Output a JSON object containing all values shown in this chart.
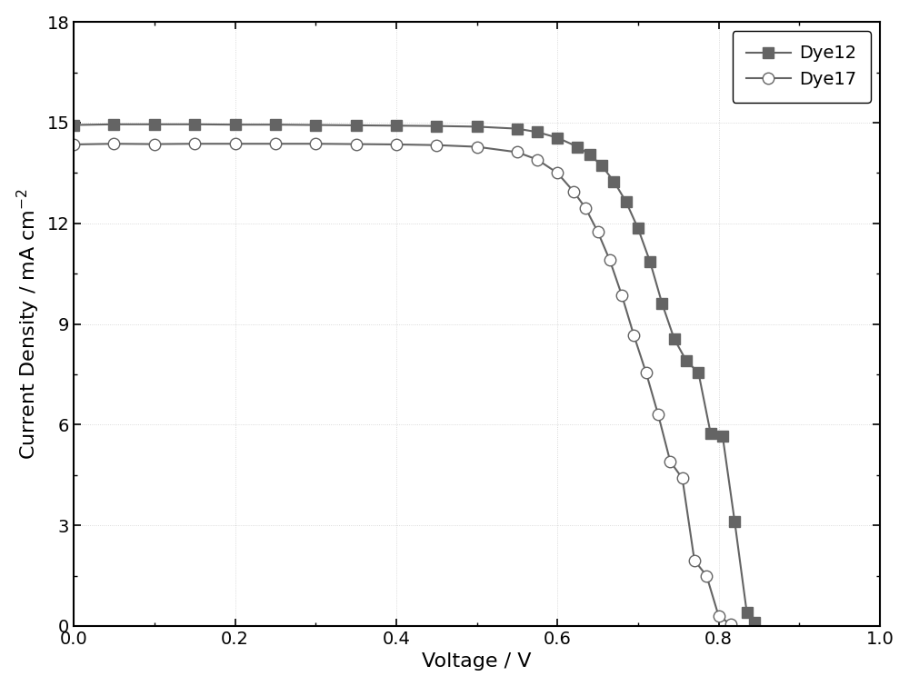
{
  "title": "",
  "xlabel": "Voltage / V",
  "ylabel": "Current Density / mA cm$^{-2}$",
  "xlim": [
    0.0,
    1.0
  ],
  "ylim": [
    0.0,
    18.0
  ],
  "yticks": [
    0,
    3,
    6,
    9,
    12,
    15,
    18
  ],
  "xticks": [
    0.0,
    0.2,
    0.4,
    0.6,
    0.8,
    1.0
  ],
  "background_color": "#ffffff",
  "line_color": "#646464",
  "dye12_x": [
    0.0,
    0.05,
    0.1,
    0.15,
    0.2,
    0.25,
    0.3,
    0.35,
    0.4,
    0.45,
    0.5,
    0.55,
    0.575,
    0.6,
    0.625,
    0.64,
    0.655,
    0.67,
    0.685,
    0.7,
    0.715,
    0.73,
    0.745,
    0.76,
    0.775,
    0.79,
    0.805,
    0.82,
    0.835,
    0.845
  ],
  "dye12_y": [
    14.93,
    14.95,
    14.95,
    14.95,
    14.94,
    14.94,
    14.93,
    14.92,
    14.91,
    14.9,
    14.88,
    14.82,
    14.72,
    14.55,
    14.28,
    14.05,
    13.72,
    13.25,
    12.65,
    11.85,
    10.85,
    9.6,
    8.55,
    7.9,
    7.55,
    5.75,
    5.65,
    3.1,
    0.4,
    0.1
  ],
  "dye17_x": [
    0.0,
    0.05,
    0.1,
    0.15,
    0.2,
    0.25,
    0.3,
    0.35,
    0.4,
    0.45,
    0.5,
    0.55,
    0.575,
    0.6,
    0.62,
    0.635,
    0.65,
    0.665,
    0.68,
    0.695,
    0.71,
    0.725,
    0.74,
    0.755,
    0.77,
    0.785,
    0.8,
    0.815
  ],
  "dye17_y": [
    14.35,
    14.37,
    14.36,
    14.37,
    14.37,
    14.37,
    14.37,
    14.36,
    14.35,
    14.33,
    14.28,
    14.12,
    13.9,
    13.5,
    12.95,
    12.45,
    11.75,
    10.9,
    9.85,
    8.65,
    7.55,
    6.3,
    4.9,
    4.4,
    1.95,
    1.5,
    0.3,
    0.05
  ],
  "legend_labels": [
    "Dye12",
    "Dye17"
  ],
  "legend_loc": "upper right",
  "marker_size_square": 8,
  "marker_size_circle": 9,
  "linewidth": 1.5,
  "axis_fontsize": 16,
  "tick_fontsize": 14,
  "legend_fontsize": 14
}
